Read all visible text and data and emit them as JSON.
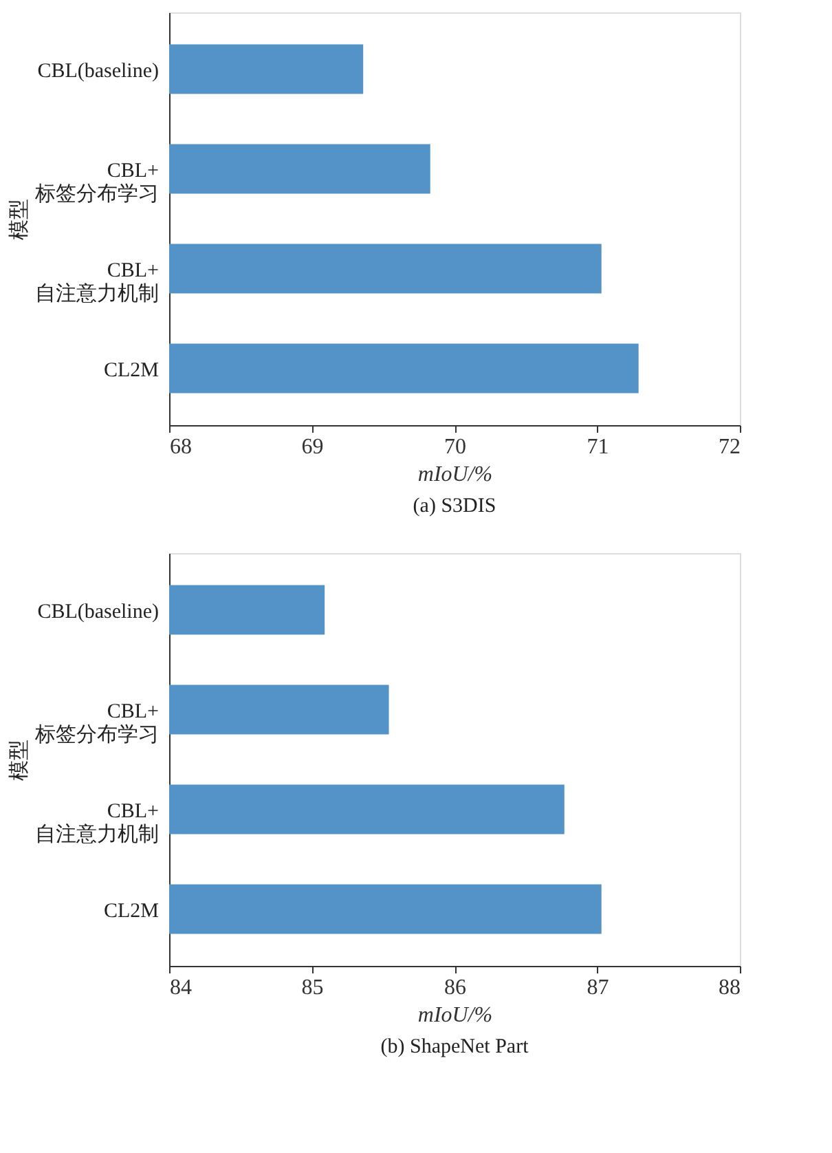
{
  "chart_data": [
    {
      "type": "bar",
      "orientation": "horizontal",
      "title": "(a)  S3DIS",
      "xlabel": "mIoU/%",
      "ylabel": "模型",
      "categories": [
        "CBL(baseline)",
        "CBL+标签分布学习",
        "CBL+自注意力机制",
        "CL2M"
      ],
      "values": [
        69.36,
        69.83,
        71.03,
        71.29
      ],
      "color": "#5393c8",
      "xlim": [
        68,
        72
      ],
      "xticks": [
        68,
        69,
        70,
        71,
        72
      ],
      "grid": false
    },
    {
      "type": "bar",
      "orientation": "horizontal",
      "title": "(b)  ShapeNet Part",
      "xlabel": "mIoU/%",
      "ylabel": "模型",
      "categories": [
        "CBL(baseline)",
        "CBL+标签分布学习",
        "CBL+自注意力机制",
        "CL2M"
      ],
      "values": [
        85.09,
        85.54,
        86.77,
        87.03
      ],
      "color": "#5393c8",
      "xlim": [
        84,
        88
      ],
      "xticks": [
        84,
        85,
        86,
        87,
        88
      ],
      "grid": false
    }
  ]
}
